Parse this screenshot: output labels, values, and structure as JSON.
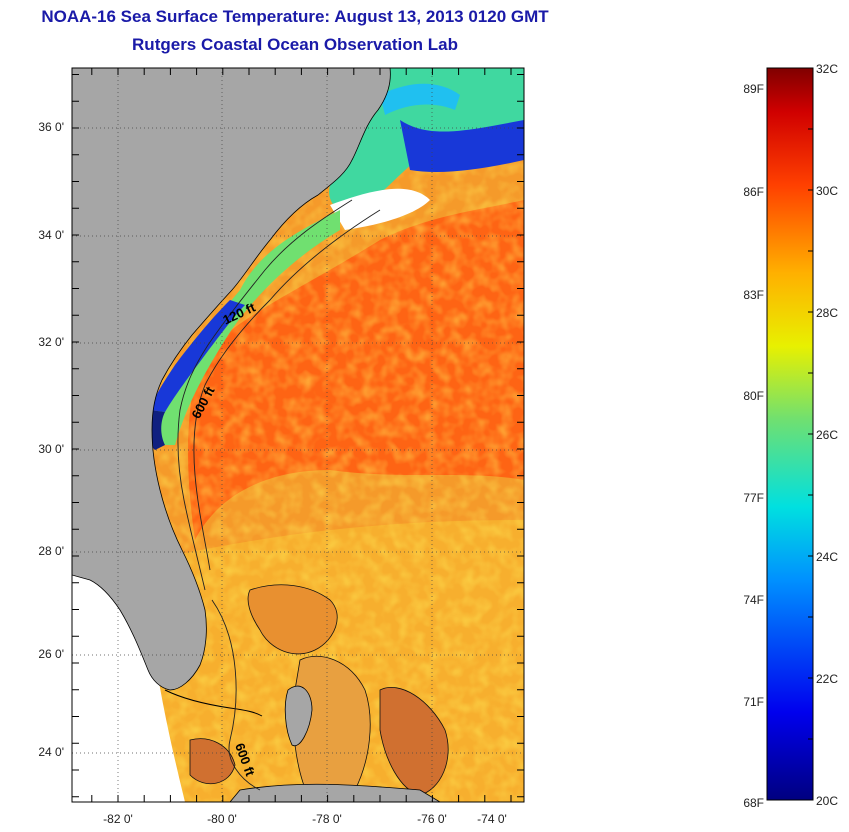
{
  "title": "NOAA-16 Sea Surface Temperature:  August 13, 2013 0120 GMT",
  "subtitle": "Rutgers Coastal Ocean Observation Lab",
  "map": {
    "lat_labels": [
      "36 0'",
      "34 0'",
      "32 0'",
      "30 0'",
      "28 0'",
      "26 0'",
      "24 0'"
    ],
    "lon_labels": [
      "-82 0'",
      "-80 0'",
      "-78 0'",
      "-76 0'",
      "-74 0'"
    ],
    "contour_labels": [
      "120 ft",
      "600 ft",
      "600 ft"
    ],
    "colors": {
      "land": "#a6a6a6",
      "nodata": "#ffffff",
      "warm": "#ff6a1a",
      "cool": "#1030d0"
    }
  },
  "colorbar": {
    "fahrenheit_labels": [
      "89F",
      "86F",
      "83F",
      "80F",
      "77F",
      "74F",
      "71F",
      "68F"
    ],
    "celsius_labels": [
      "32C",
      "30C",
      "28C",
      "26C",
      "24C",
      "22C",
      "20C"
    ],
    "range_c": [
      20,
      32
    ]
  }
}
